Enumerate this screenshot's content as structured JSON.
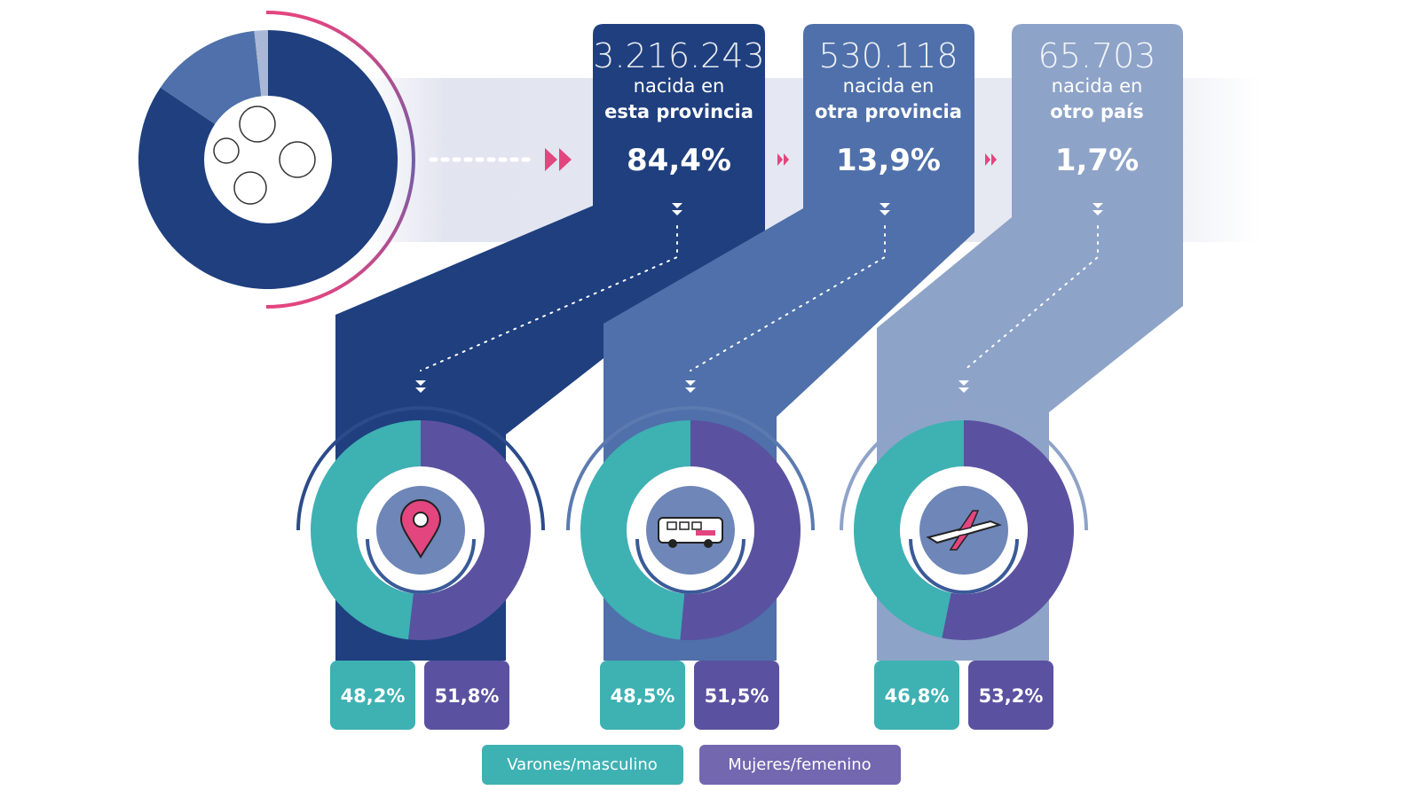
{
  "colors": {
    "dark_blue": "#1f3f7f",
    "mid_blue": "#4f70aa",
    "light_blue": "#8ea3c8",
    "teal": "#3eb1b3",
    "purple": "#5a52a0",
    "pink": "#e3457f",
    "band": "#e4e6f1"
  },
  "columns": [
    {
      "count": "3.216.243",
      "line1": "nacida en",
      "line2": "esta provincia",
      "percent": "84,4%",
      "icon": "map-pin-icon",
      "male": "48,2%",
      "female": "51,8%"
    },
    {
      "count": "530.118",
      "line1": "nacida en",
      "line2": "otra provincia",
      "percent": "13,9%",
      "icon": "bus-icon",
      "male": "48,5%",
      "female": "51,5%"
    },
    {
      "count": "65.703",
      "line1": "nacida en",
      "line2": "otro país",
      "percent": "1,7%",
      "icon": "airplane-icon",
      "male": "46,8%",
      "female": "53,2%"
    }
  ],
  "legend": {
    "male": "Varones/masculino",
    "female": "Mujeres/femenino"
  },
  "chart_data": [
    {
      "type": "pie",
      "style": "donut",
      "categories": [
        "nacida en esta provincia",
        "nacida en otra provincia",
        "nacida en otro país"
      ],
      "values": [
        84.4,
        13.9,
        1.7
      ]
    },
    {
      "type": "pie",
      "style": "donut",
      "categories": [
        "Varones/masculino",
        "Mujeres/femenino"
      ],
      "values": [
        48.2,
        51.8
      ]
    },
    {
      "type": "pie",
      "style": "donut",
      "categories": [
        "Varones/masculino",
        "Mujeres/femenino"
      ],
      "values": [
        48.5,
        51.5
      ]
    },
    {
      "type": "pie",
      "style": "donut",
      "categories": [
        "Varones/masculino",
        "Mujeres/femenino"
      ],
      "values": [
        46.8,
        53.2
      ]
    }
  ]
}
